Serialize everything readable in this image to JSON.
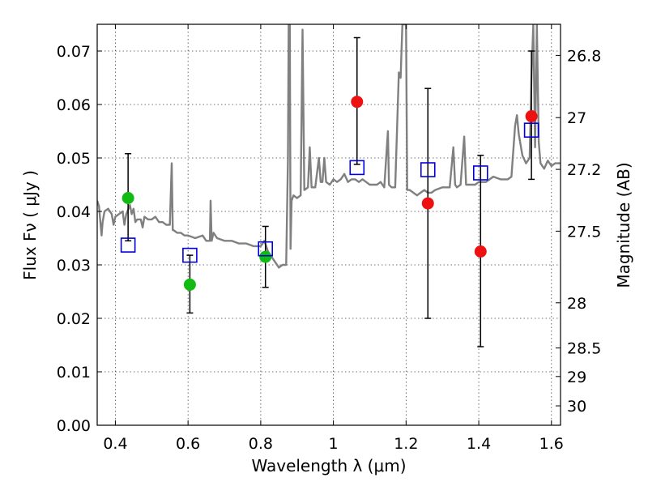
{
  "chart_data": {
    "type": "scatter",
    "xlabel": "Wavelength  λ (μm)",
    "ylabel": "Flux  Fν  ( μJy )",
    "y2label": "Magnitude (AB)",
    "xlim": [
      0.35,
      1.625
    ],
    "ylim": [
      0.0,
      0.075
    ],
    "grid": true,
    "x_ticks": [
      {
        "value": 0.4,
        "label": "0.4"
      },
      {
        "value": 0.6,
        "label": "0.6"
      },
      {
        "value": 0.8,
        "label": "0.8"
      },
      {
        "value": 1.0,
        "label": "1"
      },
      {
        "value": 1.2,
        "label": "1.2"
      },
      {
        "value": 1.4,
        "label": "1.4"
      },
      {
        "value": 1.6,
        "label": "1.6"
      }
    ],
    "y_ticks": [
      {
        "value": 0.0,
        "label": "0.00"
      },
      {
        "value": 0.01,
        "label": "0.01"
      },
      {
        "value": 0.02,
        "label": "0.02"
      },
      {
        "value": 0.03,
        "label": "0.03"
      },
      {
        "value": 0.04,
        "label": "0.04"
      },
      {
        "value": 0.05,
        "label": "0.05"
      },
      {
        "value": 0.06,
        "label": "0.06"
      },
      {
        "value": 0.07,
        "label": "0.07"
      }
    ],
    "y2_ticks": [
      {
        "value": 26.8,
        "label": "26.8"
      },
      {
        "value": 27.0,
        "label": "27"
      },
      {
        "value": 27.2,
        "label": "27.2"
      },
      {
        "value": 27.5,
        "label": "27.5"
      },
      {
        "value": 28.0,
        "label": "28"
      },
      {
        "value": 28.5,
        "label": "28.5"
      },
      {
        "value": 29.0,
        "label": "29"
      },
      {
        "value": 30.0,
        "label": "30"
      }
    ],
    "model_spectrum": {
      "color": "#808080",
      "points": [
        [
          0.35,
          0.042
        ],
        [
          0.355,
          0.041
        ],
        [
          0.36,
          0.037
        ],
        [
          0.362,
          0.0355
        ],
        [
          0.365,
          0.038
        ],
        [
          0.37,
          0.04
        ],
        [
          0.38,
          0.0405
        ],
        [
          0.39,
          0.0395
        ],
        [
          0.395,
          0.0375
        ],
        [
          0.4,
          0.039
        ],
        [
          0.41,
          0.0395
        ],
        [
          0.42,
          0.04
        ],
        [
          0.425,
          0.0375
        ],
        [
          0.43,
          0.0395
        ],
        [
          0.44,
          0.0412
        ],
        [
          0.445,
          0.0395
        ],
        [
          0.45,
          0.0405
        ],
        [
          0.455,
          0.038
        ],
        [
          0.46,
          0.0385
        ],
        [
          0.47,
          0.0385
        ],
        [
          0.475,
          0.037
        ],
        [
          0.48,
          0.039
        ],
        [
          0.49,
          0.0385
        ],
        [
          0.5,
          0.0385
        ],
        [
          0.51,
          0.039
        ],
        [
          0.52,
          0.038
        ],
        [
          0.53,
          0.038
        ],
        [
          0.54,
          0.0375
        ],
        [
          0.55,
          0.0375
        ],
        [
          0.555,
          0.049
        ],
        [
          0.558,
          0.0365
        ],
        [
          0.56,
          0.0365
        ],
        [
          0.57,
          0.036
        ],
        [
          0.58,
          0.036
        ],
        [
          0.59,
          0.0355
        ],
        [
          0.6,
          0.0355
        ],
        [
          0.62,
          0.035
        ],
        [
          0.64,
          0.0355
        ],
        [
          0.65,
          0.0345
        ],
        [
          0.66,
          0.0345
        ],
        [
          0.662,
          0.042
        ],
        [
          0.665,
          0.0345
        ],
        [
          0.67,
          0.036
        ],
        [
          0.68,
          0.035
        ],
        [
          0.7,
          0.0345
        ],
        [
          0.72,
          0.0345
        ],
        [
          0.74,
          0.034
        ],
        [
          0.76,
          0.034
        ],
        [
          0.78,
          0.0335
        ],
        [
          0.8,
          0.0335
        ],
        [
          0.81,
          0.0345
        ],
        [
          0.82,
          0.0325
        ],
        [
          0.83,
          0.0315
        ],
        [
          0.84,
          0.0305
        ],
        [
          0.85,
          0.0295
        ],
        [
          0.86,
          0.03
        ],
        [
          0.87,
          0.03
        ],
        [
          0.875,
          0.05
        ],
        [
          0.877,
          0.075
        ],
        [
          0.88,
          0.075
        ],
        [
          0.882,
          0.033
        ],
        [
          0.885,
          0.042
        ],
        [
          0.89,
          0.043
        ],
        [
          0.9,
          0.0425
        ],
        [
          0.91,
          0.043
        ],
        [
          0.915,
          0.074
        ],
        [
          0.92,
          0.044
        ],
        [
          0.93,
          0.0445
        ],
        [
          0.935,
          0.052
        ],
        [
          0.94,
          0.0445
        ],
        [
          0.95,
          0.0445
        ],
        [
          0.96,
          0.05
        ],
        [
          0.965,
          0.0455
        ],
        [
          0.97,
          0.0455
        ],
        [
          0.975,
          0.05
        ],
        [
          0.98,
          0.0455
        ],
        [
          0.99,
          0.045
        ],
        [
          1.0,
          0.046
        ],
        [
          1.01,
          0.0455
        ],
        [
          1.02,
          0.046
        ],
        [
          1.03,
          0.047
        ],
        [
          1.04,
          0.0455
        ],
        [
          1.05,
          0.046
        ],
        [
          1.06,
          0.046
        ],
        [
          1.07,
          0.0455
        ],
        [
          1.08,
          0.046
        ],
        [
          1.09,
          0.0455
        ],
        [
          1.1,
          0.045
        ],
        [
          1.12,
          0.045
        ],
        [
          1.13,
          0.0455
        ],
        [
          1.14,
          0.0445
        ],
        [
          1.15,
          0.055
        ],
        [
          1.153,
          0.045
        ],
        [
          1.16,
          0.0445
        ],
        [
          1.17,
          0.0445
        ],
        [
          1.18,
          0.066
        ],
        [
          1.185,
          0.065
        ],
        [
          1.19,
          0.075
        ],
        [
          1.2,
          0.075
        ],
        [
          1.203,
          0.044
        ],
        [
          1.21,
          0.044
        ],
        [
          1.22,
          0.0435
        ],
        [
          1.23,
          0.043
        ],
        [
          1.24,
          0.0435
        ],
        [
          1.25,
          0.044
        ],
        [
          1.26,
          0.0435
        ],
        [
          1.27,
          0.0435
        ],
        [
          1.28,
          0.044
        ],
        [
          1.3,
          0.0445
        ],
        [
          1.32,
          0.0445
        ],
        [
          1.33,
          0.052
        ],
        [
          1.335,
          0.045
        ],
        [
          1.34,
          0.0445
        ],
        [
          1.35,
          0.045
        ],
        [
          1.36,
          0.054
        ],
        [
          1.365,
          0.045
        ],
        [
          1.37,
          0.045
        ],
        [
          1.38,
          0.045
        ],
        [
          1.39,
          0.045
        ],
        [
          1.4,
          0.0455
        ],
        [
          1.42,
          0.0455
        ],
        [
          1.44,
          0.0465
        ],
        [
          1.46,
          0.046
        ],
        [
          1.48,
          0.046
        ],
        [
          1.49,
          0.0465
        ],
        [
          1.5,
          0.056
        ],
        [
          1.505,
          0.058
        ],
        [
          1.51,
          0.0545
        ],
        [
          1.52,
          0.0505
        ],
        [
          1.53,
          0.049
        ],
        [
          1.54,
          0.05
        ],
        [
          1.545,
          0.065
        ],
        [
          1.55,
          0.075
        ],
        [
          1.555,
          0.052
        ],
        [
          1.56,
          0.075
        ],
        [
          1.565,
          0.053
        ],
        [
          1.57,
          0.049
        ],
        [
          1.58,
          0.048
        ],
        [
          1.59,
          0.0495
        ],
        [
          1.6,
          0.0485
        ],
        [
          1.61,
          0.049
        ],
        [
          1.625,
          0.049
        ]
      ]
    },
    "series": [
      {
        "marker": "circle",
        "color": "#11bb11",
        "points": [
          {
            "x": 0.435,
            "y": 0.0425
          },
          {
            "x": 0.605,
            "y": 0.0263
          },
          {
            "x": 0.813,
            "y": 0.0315
          }
        ]
      },
      {
        "marker": "circle",
        "color": "#ee1111",
        "points": [
          {
            "x": 1.065,
            "y": 0.0605
          },
          {
            "x": 1.26,
            "y": 0.0415
          },
          {
            "x": 1.405,
            "y": 0.0325
          },
          {
            "x": 1.545,
            "y": 0.0578
          }
        ]
      },
      {
        "marker": "square-open",
        "color": "#0000dd",
        "points": [
          {
            "x": 0.435,
            "y": 0.0337
          },
          {
            "x": 0.605,
            "y": 0.0318
          },
          {
            "x": 0.813,
            "y": 0.033
          },
          {
            "x": 1.065,
            "y": 0.0482
          },
          {
            "x": 1.26,
            "y": 0.0478
          },
          {
            "x": 1.405,
            "y": 0.0472
          },
          {
            "x": 1.545,
            "y": 0.0552
          }
        ]
      }
    ],
    "error_bars": [
      {
        "x": 0.435,
        "low": 0.0345,
        "high": 0.0508
      },
      {
        "x": 0.605,
        "low": 0.021,
        "high": 0.0318
      },
      {
        "x": 0.813,
        "low": 0.0258,
        "high": 0.0372
      },
      {
        "x": 1.065,
        "low": 0.0488,
        "high": 0.0725
      },
      {
        "x": 1.26,
        "low": 0.02,
        "high": 0.063
      },
      {
        "x": 1.405,
        "low": 0.0147,
        "high": 0.0505
      },
      {
        "x": 1.545,
        "low": 0.046,
        "high": 0.07
      }
    ]
  }
}
